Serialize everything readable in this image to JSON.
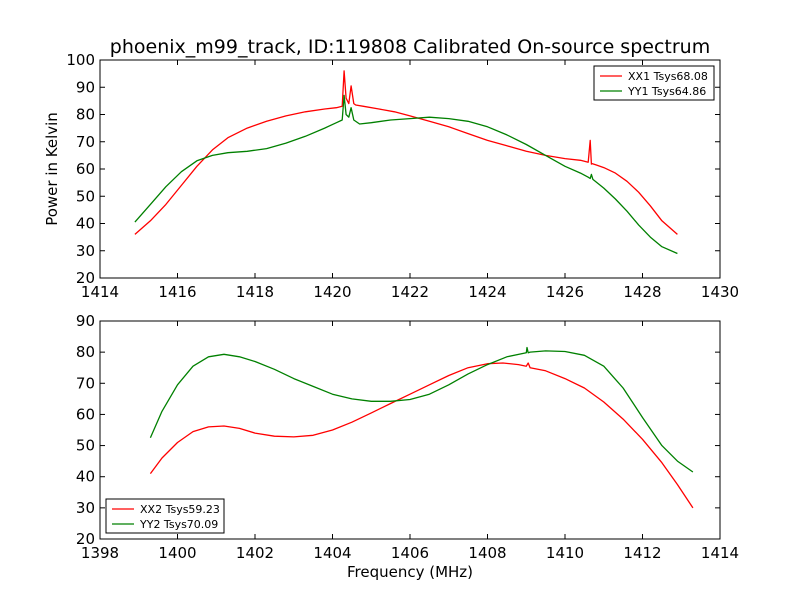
{
  "figure": {
    "title": "phoenix_m99_track, ID:119808 Calibrated On-source spectrum",
    "ylabel": "Power in Kelvin",
    "xlabel": "Frequency (MHz)"
  },
  "chart_data": [
    {
      "type": "line",
      "title": "phoenix_m99_track, ID:119808 Calibrated On-source spectrum",
      "xlabel": "",
      "ylabel": "Power in Kelvin",
      "xlim": [
        1414,
        1430
      ],
      "ylim": [
        20,
        100
      ],
      "xticks": [
        1414,
        1416,
        1418,
        1420,
        1422,
        1424,
        1426,
        1428,
        1430
      ],
      "yticks": [
        20,
        30,
        40,
        50,
        60,
        70,
        80,
        90,
        100
      ],
      "legend": "top-right",
      "grid": false,
      "series": [
        {
          "name": "XX1 Tsys68.08",
          "color": "#ff0000",
          "x": [
            1414.9,
            1415.3,
            1415.7,
            1416.1,
            1416.5,
            1416.9,
            1417.3,
            1417.8,
            1418.3,
            1418.8,
            1419.3,
            1419.8,
            1420.1,
            1420.25,
            1420.3,
            1420.35,
            1420.42,
            1420.48,
            1420.55,
            1420.6,
            1420.8,
            1421.2,
            1421.6,
            1422.0,
            1422.5,
            1423.0,
            1423.5,
            1424.0,
            1424.5,
            1425.0,
            1425.5,
            1426.0,
            1426.4,
            1426.6,
            1426.65,
            1426.68,
            1426.7,
            1426.8,
            1427.0,
            1427.3,
            1427.6,
            1427.9,
            1428.2,
            1428.5,
            1428.9
          ],
          "y": [
            36,
            41,
            47,
            54,
            61,
            67,
            71.5,
            75,
            77.5,
            79.5,
            81,
            82,
            82.5,
            83,
            96,
            86,
            84,
            90.5,
            84,
            83.5,
            83,
            82,
            81,
            79.5,
            77.5,
            75.5,
            73,
            70.5,
            68.5,
            66.5,
            65,
            63.8,
            63.2,
            62.5,
            70.5,
            61.8,
            62,
            61.5,
            60.5,
            58.5,
            55.5,
            51.5,
            46.5,
            41,
            36
          ]
        },
        {
          "name": "YY1 Tsys64.86",
          "color": "#008000",
          "x": [
            1414.9,
            1415.3,
            1415.7,
            1416.1,
            1416.5,
            1416.9,
            1417.3,
            1417.8,
            1418.3,
            1418.8,
            1419.3,
            1419.8,
            1420.1,
            1420.25,
            1420.3,
            1420.35,
            1420.42,
            1420.48,
            1420.55,
            1420.7,
            1421.0,
            1421.5,
            1422.0,
            1422.5,
            1423.0,
            1423.5,
            1424.0,
            1424.5,
            1425.0,
            1425.5,
            1426.0,
            1426.4,
            1426.6,
            1426.65,
            1426.68,
            1426.72,
            1427.0,
            1427.3,
            1427.6,
            1427.9,
            1428.2,
            1428.5,
            1428.9
          ],
          "y": [
            40.5,
            47,
            53.5,
            59,
            63,
            65,
            66,
            66.5,
            67.5,
            69.5,
            72,
            75,
            77,
            78,
            87,
            80,
            79,
            82.5,
            78,
            76.5,
            77,
            78,
            78.5,
            79,
            78.5,
            77.5,
            75.5,
            72.5,
            69,
            65,
            61,
            58.5,
            57,
            56.5,
            58,
            56.2,
            53,
            49,
            44.5,
            39.5,
            35,
            31.5,
            29
          ]
        }
      ]
    },
    {
      "type": "line",
      "title": "",
      "xlabel": "Frequency (MHz)",
      "ylabel": "",
      "xlim": [
        1398,
        1414
      ],
      "ylim": [
        20,
        90
      ],
      "xticks": [
        1398,
        1400,
        1402,
        1404,
        1406,
        1408,
        1410,
        1412,
        1414
      ],
      "yticks": [
        20,
        30,
        40,
        50,
        60,
        70,
        80,
        90
      ],
      "legend": "bottom-left",
      "grid": false,
      "series": [
        {
          "name": "XX2 Tsys59.23",
          "color": "#ff0000",
          "x": [
            1399.3,
            1399.6,
            1400.0,
            1400.4,
            1400.8,
            1401.2,
            1401.6,
            1402.0,
            1402.5,
            1403.0,
            1403.5,
            1404.0,
            1404.5,
            1405.0,
            1405.5,
            1406.0,
            1406.5,
            1407.0,
            1407.5,
            1408.0,
            1408.4,
            1408.8,
            1409.0,
            1409.05,
            1409.1,
            1409.5,
            1410.0,
            1410.5,
            1411.0,
            1411.5,
            1412.0,
            1412.5,
            1412.9,
            1413.3
          ],
          "y": [
            41,
            46,
            51,
            54.5,
            56,
            56.3,
            55.5,
            54,
            53,
            52.8,
            53.3,
            55,
            57.5,
            60.5,
            63.5,
            66.5,
            69.5,
            72.5,
            75,
            76.3,
            76.5,
            76,
            75.5,
            76.5,
            75,
            74,
            71.5,
            68.5,
            64,
            58.5,
            52,
            44.5,
            37.5,
            30
          ]
        },
        {
          "name": "YY2 Tsys70.09",
          "color": "#008000",
          "x": [
            1399.3,
            1399.6,
            1400.0,
            1400.4,
            1400.8,
            1401.2,
            1401.6,
            1402.0,
            1402.5,
            1403.0,
            1403.5,
            1404.0,
            1404.5,
            1405.0,
            1405.5,
            1406.0,
            1406.5,
            1407.0,
            1407.5,
            1408.0,
            1408.5,
            1409.0,
            1409.02,
            1409.05,
            1409.1,
            1409.5,
            1410.0,
            1410.5,
            1411.0,
            1411.5,
            1412.0,
            1412.5,
            1412.9,
            1413.3
          ],
          "y": [
            52.5,
            61,
            69.5,
            75.5,
            78.5,
            79.3,
            78.5,
            77,
            74.5,
            71.5,
            69,
            66.5,
            65,
            64.2,
            64.2,
            64.8,
            66.5,
            69.5,
            73,
            76,
            78.5,
            79.8,
            81.5,
            79.8,
            80,
            80.4,
            80.2,
            79,
            75.5,
            68.5,
            59,
            50,
            45,
            41.5
          ]
        }
      ]
    }
  ]
}
